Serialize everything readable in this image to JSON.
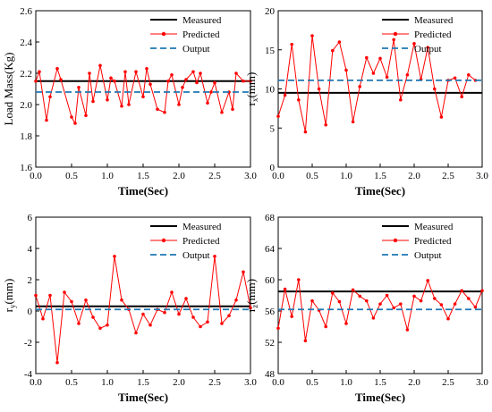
{
  "legend_labels": [
    "Measured",
    "Predicted",
    "Output"
  ],
  "colors": {
    "measured": "#000000",
    "predicted": "#ff0000",
    "output": "#1f77b4"
  },
  "chart_data": [
    {
      "type": "line",
      "xlabel": "Time(Sec)",
      "ylabel": "Load Mass(Kg)",
      "xlim": [
        0,
        3.0
      ],
      "ylim": [
        1.6,
        2.6
      ],
      "xticks": [
        "0.0",
        "0.5",
        "1.0",
        "1.5",
        "2.0",
        "2.5",
        "3.0"
      ],
      "yticks": [
        "1.6",
        "1.8",
        "2.0",
        "2.2",
        "2.4",
        "2.6"
      ],
      "legend": "top-right",
      "series": [
        {
          "name": "Measured",
          "x": [
            0,
            3.0
          ],
          "values": [
            2.15,
            2.15
          ]
        },
        {
          "name": "Predicted",
          "x": [
            0.0,
            0.05,
            0.15,
            0.2,
            0.3,
            0.35,
            0.5,
            0.55,
            0.6,
            0.7,
            0.75,
            0.8,
            0.9,
            1.0,
            1.05,
            1.1,
            1.2,
            1.25,
            1.3,
            1.4,
            1.5,
            1.55,
            1.6,
            1.7,
            1.8,
            1.85,
            1.9,
            2.0,
            2.05,
            2.1,
            2.2,
            2.25,
            2.3,
            2.4,
            2.45,
            2.5,
            2.6,
            2.7,
            2.75,
            2.8,
            2.9,
            3.0
          ],
          "values": [
            2.15,
            2.21,
            1.9,
            2.05,
            2.23,
            2.16,
            1.92,
            1.88,
            2.11,
            1.93,
            2.2,
            2.02,
            2.25,
            2.03,
            2.17,
            2.15,
            1.99,
            2.21,
            2.0,
            2.21,
            2.05,
            2.23,
            2.13,
            1.97,
            1.95,
            2.15,
            2.19,
            2.0,
            2.11,
            2.16,
            2.21,
            2.14,
            2.2,
            2.01,
            2.08,
            2.14,
            1.95,
            2.08,
            1.97,
            2.2,
            2.15,
            2.15
          ]
        },
        {
          "name": "Output",
          "x": [
            0,
            3.0
          ],
          "values": [
            2.08,
            2.08
          ]
        }
      ]
    },
    {
      "type": "line",
      "xlabel": "Time(Sec)",
      "ylabel": "r",
      "ylabel_sub": "x",
      "ylabel_unit": "(mm)",
      "xlim": [
        0,
        3.0
      ],
      "ylim": [
        0,
        20
      ],
      "xticks": [
        "0.0",
        "0.5",
        "1.0",
        "1.5",
        "2.0",
        "2.5",
        "3.0"
      ],
      "yticks": [
        "0",
        "5",
        "10",
        "15",
        "20"
      ],
      "legend": "top-right",
      "series": [
        {
          "name": "Measured",
          "x": [
            0,
            3.0
          ],
          "values": [
            9.5,
            9.5
          ]
        },
        {
          "name": "Predicted",
          "x": [
            0.0,
            0.1,
            0.2,
            0.3,
            0.4,
            0.5,
            0.6,
            0.7,
            0.8,
            0.9,
            1.0,
            1.1,
            1.2,
            1.3,
            1.4,
            1.5,
            1.6,
            1.7,
            1.8,
            1.9,
            2.0,
            2.1,
            2.2,
            2.3,
            2.4,
            2.5,
            2.6,
            2.7,
            2.8,
            2.9
          ],
          "values": [
            6.5,
            9.2,
            15.7,
            8.6,
            4.5,
            16.8,
            10.0,
            5.4,
            14.9,
            16.0,
            12.4,
            5.8,
            10.3,
            14.0,
            12.0,
            13.9,
            11.5,
            16.3,
            8.6,
            11.8,
            15.8,
            11.2,
            15.3,
            10.0,
            6.4,
            11.1,
            11.4,
            9.0,
            11.8,
            11.1
          ]
        },
        {
          "name": "Output",
          "x": [
            0,
            3.0
          ],
          "values": [
            11.1,
            11.1
          ]
        }
      ]
    },
    {
      "type": "line",
      "xlabel": "Time(Sec)",
      "ylabel": "r",
      "ylabel_sub": "y",
      "ylabel_unit": "(mm)",
      "xlim": [
        0,
        3.0
      ],
      "ylim": [
        -4,
        6
      ],
      "xticks": [
        "0.0",
        "0.5",
        "1.0",
        "1.5",
        "2.0",
        "2.5",
        "3.0"
      ],
      "yticks": [
        "-4",
        "-2",
        "0",
        "2",
        "4",
        "6"
      ],
      "legend": "top-right",
      "series": [
        {
          "name": "Measured",
          "x": [
            0,
            3.0
          ],
          "values": [
            0.3,
            0.3
          ]
        },
        {
          "name": "Predicted",
          "x": [
            0.0,
            0.1,
            0.2,
            0.3,
            0.4,
            0.5,
            0.6,
            0.7,
            0.8,
            0.9,
            1.0,
            1.1,
            1.2,
            1.3,
            1.4,
            1.5,
            1.6,
            1.7,
            1.8,
            1.9,
            2.0,
            2.1,
            2.2,
            2.3,
            2.4,
            2.5,
            2.6,
            2.7,
            2.8,
            2.9,
            3.0
          ],
          "values": [
            1.0,
            -0.5,
            1.0,
            -3.3,
            1.2,
            0.6,
            -0.8,
            0.7,
            -0.4,
            -1.1,
            -0.9,
            3.5,
            0.7,
            0.1,
            -1.4,
            -0.2,
            -0.9,
            0.1,
            -0.1,
            1.2,
            -0.2,
            0.8,
            -0.4,
            -1.0,
            -0.7,
            3.5,
            -0.8,
            -0.3,
            0.7,
            2.5,
            0.2
          ]
        },
        {
          "name": "Output",
          "x": [
            0,
            3.0
          ],
          "values": [
            0.1,
            0.1
          ]
        }
      ]
    },
    {
      "type": "line",
      "xlabel": "Time(Sec)",
      "ylabel": "r",
      "ylabel_sub": "z",
      "ylabel_unit": "(mm)",
      "xlim": [
        0,
        3.0
      ],
      "ylim": [
        48,
        68
      ],
      "xticks": [
        "0.0",
        "0.5",
        "1.0",
        "1.5",
        "2.0",
        "2.5",
        "3.0"
      ],
      "yticks": [
        "48",
        "52",
        "56",
        "60",
        "64",
        "68"
      ],
      "legend": "top-right",
      "series": [
        {
          "name": "Measured",
          "x": [
            0,
            3.0
          ],
          "values": [
            58.5,
            58.5
          ]
        },
        {
          "name": "Predicted",
          "x": [
            0.0,
            0.1,
            0.2,
            0.3,
            0.4,
            0.5,
            0.6,
            0.7,
            0.8,
            0.9,
            1.0,
            1.1,
            1.2,
            1.3,
            1.4,
            1.5,
            1.6,
            1.7,
            1.8,
            1.9,
            2.0,
            2.1,
            2.2,
            2.3,
            2.4,
            2.5,
            2.6,
            2.7,
            2.8,
            2.9,
            3.0
          ],
          "values": [
            53.8,
            58.8,
            55.3,
            60.0,
            52.2,
            57.3,
            56.1,
            54.0,
            58.3,
            57.2,
            54.4,
            58.7,
            57.9,
            57.3,
            55.1,
            56.9,
            58.0,
            56.4,
            56.9,
            53.6,
            57.9,
            57.3,
            59.9,
            57.6,
            56.8,
            55.0,
            56.9,
            58.6,
            57.6,
            56.5,
            58.6
          ]
        },
        {
          "name": "Output",
          "x": [
            0,
            3.0
          ],
          "values": [
            56.2,
            56.2
          ]
        }
      ]
    }
  ]
}
